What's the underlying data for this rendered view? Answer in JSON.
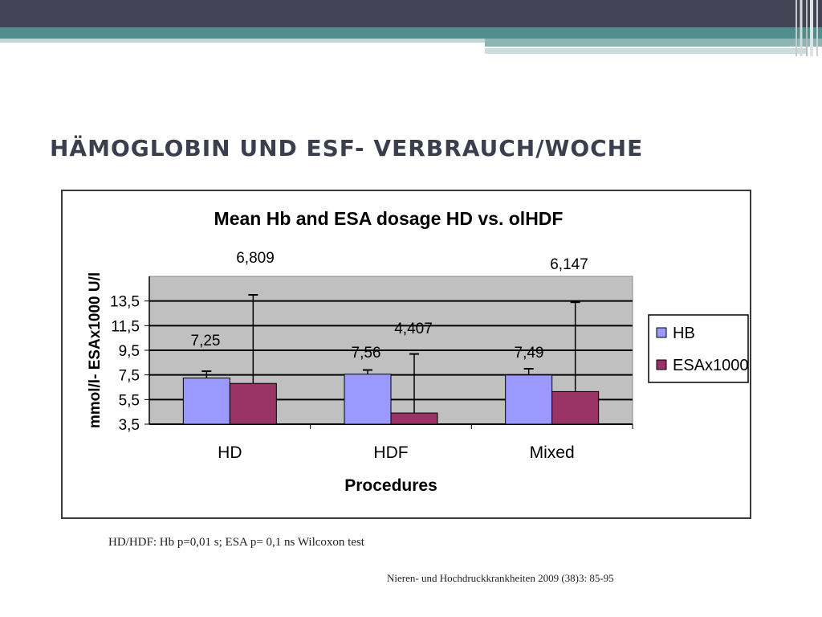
{
  "slide": {
    "title": "HÄMOGLOBIN UND ESF- VERBRAUCH/WOCHE",
    "footnote": "HD/HDF: Hb p=0,01 s; ESA p= 0,1 ns Wilcoxon test",
    "source": "Nieren- und Hochdruckkrankheiten 2009 (38)3: 85-95"
  },
  "chart_data": {
    "type": "bar",
    "title": "Mean Hb  and ESA dosage HD vs. olHDF",
    "xlabel": "Procedures",
    "ylabel": "mmol/l- ESAx1000 U/l",
    "categories": [
      "HD",
      "HDF",
      "Mixed"
    ],
    "ylim": [
      3.5,
      15.5
    ],
    "yticks": [
      "3,5",
      "5,5",
      "7,5",
      "9,5",
      "11,5",
      "13,5"
    ],
    "ytick_values": [
      3.5,
      5.5,
      7.5,
      9.5,
      11.5,
      13.5
    ],
    "grid": true,
    "legend_position": "right",
    "series": [
      {
        "name": "HB",
        "color": "#9999ff",
        "values": [
          7.25,
          7.56,
          7.49
        ],
        "labels": [
          "7,25",
          "7,56",
          "7,49"
        ],
        "error_upper": [
          7.8,
          7.9,
          8.0
        ]
      },
      {
        "name": "ESAx1000",
        "color": "#993366",
        "values": [
          6.809,
          4.407,
          6.147
        ],
        "labels": [
          "6,809",
          "4,407",
          "6,147"
        ],
        "error_upper": [
          14.0,
          9.2,
          13.4
        ]
      }
    ]
  }
}
